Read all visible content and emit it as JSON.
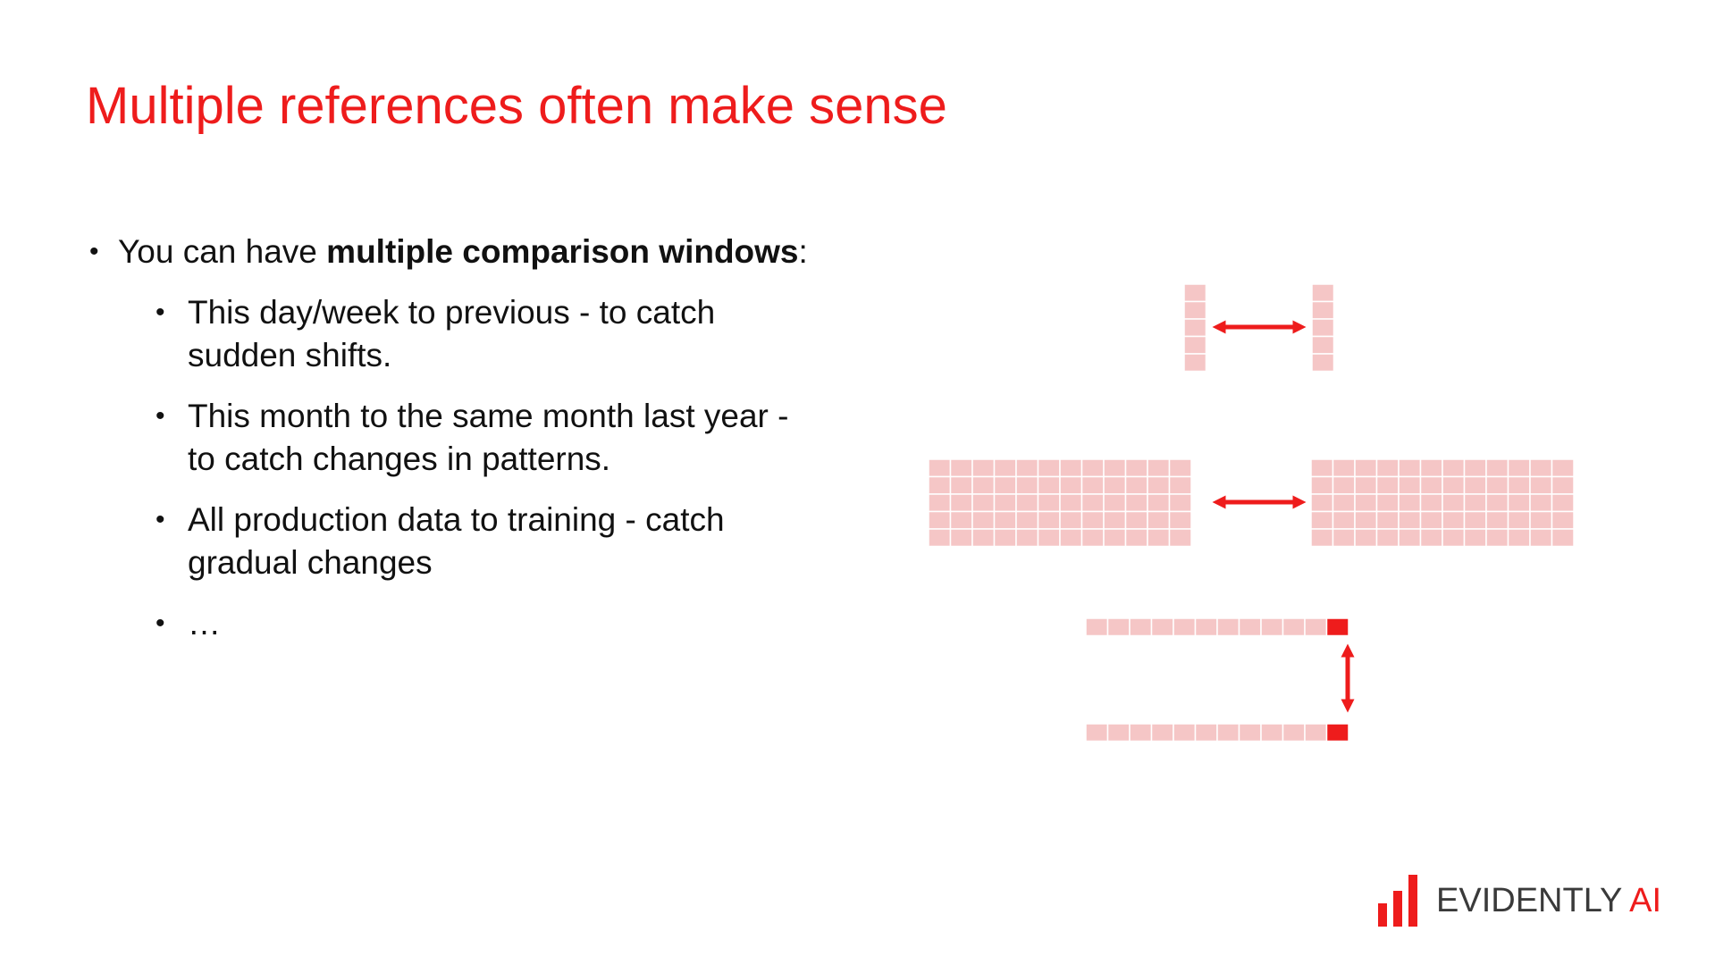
{
  "slide": {
    "title": "Multiple references often make sense"
  },
  "main_bullet": {
    "bullet": "•",
    "prefix": "You can have ",
    "bold": "multiple comparison windows",
    "suffix": ":"
  },
  "sub_bullets": [
    {
      "bullet": "•",
      "text": "This day/week to previous - to catch sudden shifts."
    },
    {
      "bullet": "•",
      "text": "This month to the same month last year - to catch changes in patterns."
    },
    {
      "bullet": "•",
      "text": "All production data to training - catch gradual changes"
    },
    {
      "bullet": "•",
      "text": "…"
    }
  ],
  "logo": {
    "text_main": "EVIDENTLY",
    "text_accent": "AI"
  },
  "colors": {
    "accent": "#ee1c1c",
    "cell_fill": "#f5c6c6",
    "text": "#111111"
  }
}
